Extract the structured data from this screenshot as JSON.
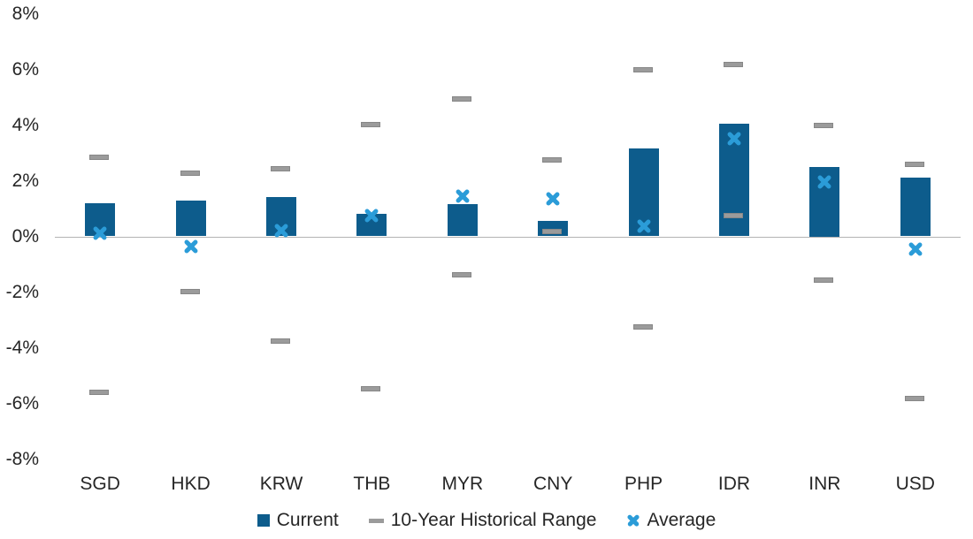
{
  "chart_data": {
    "type": "bar",
    "title": "",
    "xlabel": "",
    "ylabel": "",
    "categories": [
      "SGD",
      "HKD",
      "KRW",
      "THB",
      "MYR",
      "CNY",
      "PHP",
      "IDR",
      "INR",
      "USD"
    ],
    "series": [
      {
        "name": "Current",
        "type": "bar",
        "values": [
          1.2,
          1.3,
          1.4,
          0.8,
          1.15,
          0.55,
          3.15,
          4.05,
          2.5,
          2.1
        ]
      },
      {
        "name": "10-Year Historical Range",
        "type": "range",
        "high": [
          2.8,
          2.25,
          2.4,
          4.0,
          4.9,
          2.7,
          5.95,
          6.15,
          3.95,
          2.55
        ],
        "low": [
          -5.65,
          -2.0,
          -3.8,
          -5.5,
          -1.4,
          0.15,
          -3.3,
          0.7,
          -1.6,
          -5.85
        ]
      },
      {
        "name": "Average",
        "type": "x-marker",
        "values": [
          0.1,
          -0.35,
          0.2,
          0.75,
          1.45,
          1.35,
          0.35,
          3.5,
          1.95,
          -0.45
        ]
      }
    ],
    "ylim": [
      -8,
      8
    ],
    "y_ticks": {
      "values": [
        8,
        6,
        4,
        2,
        0,
        -2,
        -4,
        -6,
        -8
      ],
      "labels": [
        "8%",
        "6%",
        "4%",
        "2%",
        "0%",
        "-2%",
        "-4%",
        "-6%",
        "-8%"
      ]
    },
    "grid": false,
    "legend_position": "bottom",
    "colors": {
      "current": "#0d5c8c",
      "range": "#9b9b9b",
      "average": "#2b9cd8",
      "axis_line": "#b3b3b3",
      "text": "#262626"
    }
  }
}
